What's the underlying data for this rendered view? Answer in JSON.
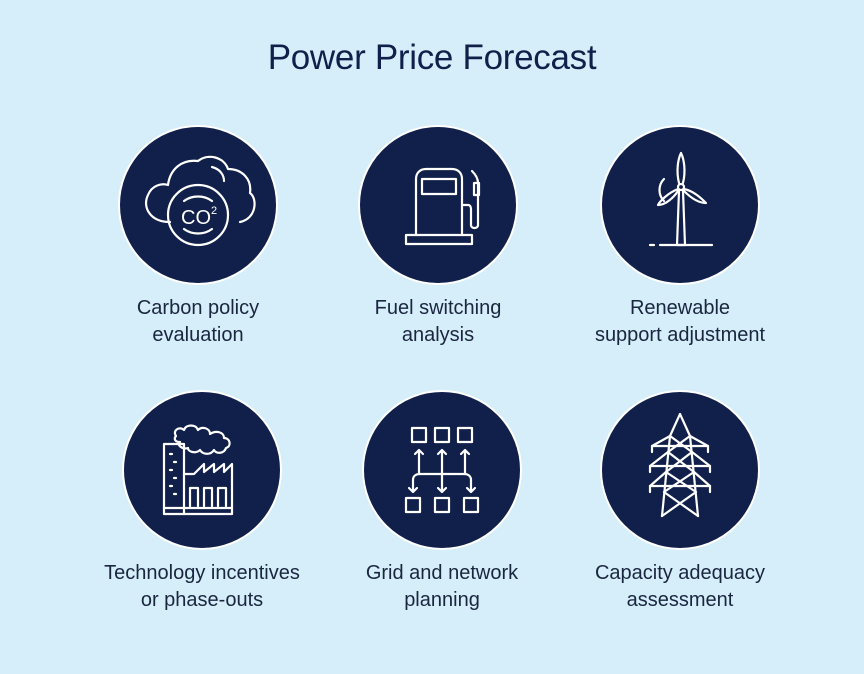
{
  "title": "Power Price Forecast",
  "colors": {
    "background": "#d5eef9",
    "circle": "#10204a",
    "text": "#1a2540"
  },
  "items": [
    {
      "icon": "cloud-co2-icon",
      "icon_text": "CO",
      "icon_sup": "2",
      "line1": "Carbon policy",
      "line2": "evaluation"
    },
    {
      "icon": "fuel-pump-icon",
      "line1": "Fuel switching",
      "line2": "analysis"
    },
    {
      "icon": "wind-turbine-icon",
      "line1": "Renewable",
      "line2": "support adjustment"
    },
    {
      "icon": "factory-icon",
      "line1": "Technology incentives",
      "line2": "or phase-outs"
    },
    {
      "icon": "network-grid-icon",
      "line1": "Grid and network",
      "line2": "planning"
    },
    {
      "icon": "transmission-tower-icon",
      "line1": "Capacity adequacy",
      "line2": "assessment"
    }
  ]
}
